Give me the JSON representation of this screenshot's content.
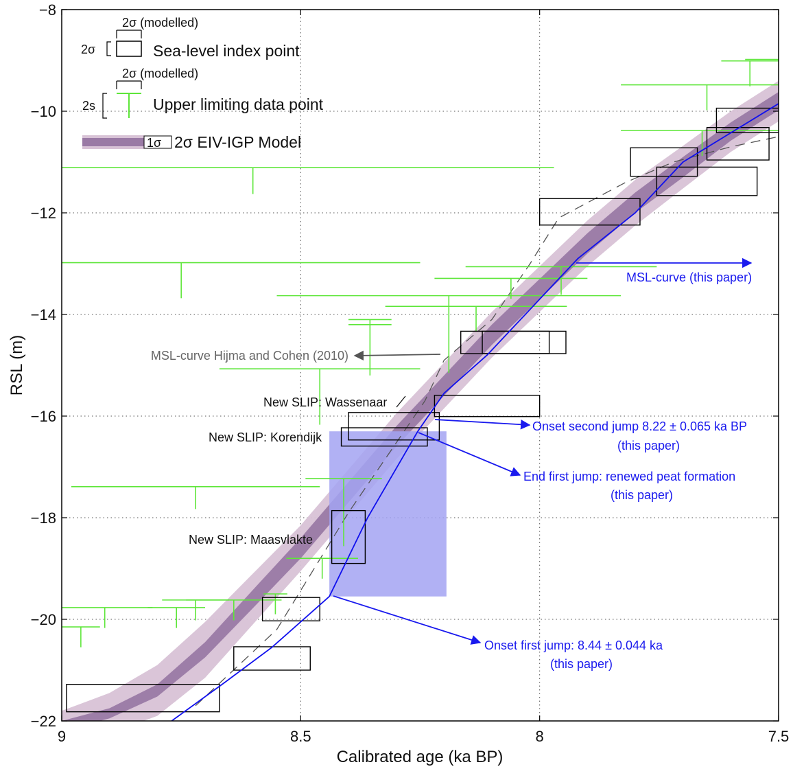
{
  "chart_data": {
    "type": "scatter",
    "xlabel": "Calibrated age (ka BP)",
    "ylabel": "RSL (m)",
    "xlim": [
      9.0,
      7.5
    ],
    "ylim": [
      -22,
      -8
    ],
    "x_reversed": true,
    "xticks": [
      9,
      8.5,
      8,
      7.5
    ],
    "xtick_labels": [
      "9",
      "8.5",
      "8",
      "7.5"
    ],
    "yticks": [
      -22,
      -20,
      -18,
      -16,
      -14,
      -12,
      -10,
      -8
    ],
    "ytick_labels": [
      "−22",
      "−20",
      "−18",
      "−16",
      "−14",
      "−12",
      "−10",
      "−8"
    ],
    "grid": true,
    "legend": {
      "placement": "top-left",
      "index_point_label": "Sea-level index point",
      "index_point_width_label": "2σ (modelled)",
      "index_point_height_label": "2σ",
      "limiting_point_label": "Upper limiting data point",
      "limiting_point_width_label": "2σ (modelled)",
      "limiting_point_height_label": "2s",
      "model_label": "2σ EIV-IGP Model",
      "model_inner_label": "1σ"
    },
    "colors": {
      "index_point": "#000000",
      "limiting_point": "#5ee63a",
      "model_band_2s": "#d8c2d6",
      "model_band_1s": "#9a7aa5",
      "model_line": "#1010ee",
      "hijma_line": "#555555",
      "highlight": "#a3a3f2",
      "annotation_blue": "#1a1aee",
      "annotation_grey": "#666666"
    },
    "index_points": [
      {
        "x": 8.83,
        "y": -21.55,
        "xerr": 0.16,
        "yerr": 0.27
      },
      {
        "x": 8.56,
        "y": -20.77,
        "xerr": 0.08,
        "yerr": 0.23
      },
      {
        "x": 8.52,
        "y": -19.8,
        "xerr": 0.06,
        "yerr": 0.23
      },
      {
        "x": 8.4,
        "y": -18.38,
        "xerr": 0.035,
        "yerr": 0.52
      },
      {
        "x": 8.325,
        "y": -16.41,
        "xerr": 0.09,
        "yerr": 0.18
      },
      {
        "x": 8.305,
        "y": -16.2,
        "xerr": 0.095,
        "yerr": 0.27
      },
      {
        "x": 8.11,
        "y": -15.8,
        "xerr": 0.11,
        "yerr": 0.21
      },
      {
        "x": 8.055,
        "y": -14.55,
        "xerr": 0.11,
        "yerr": 0.22
      },
      {
        "x": 8.05,
        "y": -14.55,
        "xerr": 0.07,
        "yerr": 0.22
      },
      {
        "x": 7.895,
        "y": -11.98,
        "xerr": 0.105,
        "yerr": 0.26
      },
      {
        "x": 7.65,
        "y": -11.38,
        "xerr": 0.105,
        "yerr": 0.28
      },
      {
        "x": 7.74,
        "y": -11.0,
        "xerr": 0.07,
        "yerr": 0.28
      },
      {
        "x": 7.585,
        "y": -10.64,
        "xerr": 0.065,
        "yerr": 0.32
      },
      {
        "x": 7.555,
        "y": -10.18,
        "xerr": 0.075,
        "yerr": 0.24
      }
    ],
    "limiting_points": [
      {
        "x": 8.96,
        "y": -20.15,
        "xerr": 0.04,
        "ydown": 0.4
      },
      {
        "x": 8.91,
        "y": -19.77,
        "xerr": 0.1,
        "ydown": 0.4
      },
      {
        "x": 8.76,
        "y": -19.77,
        "xerr": 0.06,
        "ydown": 0.4
      },
      {
        "x": 8.72,
        "y": -19.62,
        "xerr": 0.07,
        "ydown": 0.4
      },
      {
        "x": 8.64,
        "y": -19.62,
        "xerr": 0.1,
        "ydown": 0.4
      },
      {
        "x": 8.553,
        "y": -19.5,
        "xerr": 0.025,
        "ydown": 0.4
      },
      {
        "x": 8.455,
        "y": -18.8,
        "xerr": 0.075,
        "ydown": 0.4
      },
      {
        "x": 8.41,
        "y": -17.23,
        "xerr": 0.08,
        "ydown": 1.33
      },
      {
        "x": 8.72,
        "y": -17.39,
        "xerr": 0.26,
        "ydown": 0.44
      },
      {
        "x": 8.75,
        "y": -12.98,
        "xerr": 0.5,
        "ydown": 0.7
      },
      {
        "x": 8.6,
        "y": -11.11,
        "xerr": 0.63,
        "ydown": 0.52
      },
      {
        "x": 8.46,
        "y": -15.07,
        "xerr": 0.21,
        "ydown": 1.1
      },
      {
        "x": 8.355,
        "y": -14.1,
        "xerr": 0.045,
        "ydown": 1.1
      },
      {
        "x": 8.355,
        "y": -14.2,
        "xerr": 0.045,
        "ydown": 0.0
      },
      {
        "x": 8.19,
        "y": -13.63,
        "xerr": 0.36,
        "ydown": 1.52
      },
      {
        "x": 8.133,
        "y": -13.84,
        "xerr": 0.19,
        "ydown": 0.5
      },
      {
        "x": 8.06,
        "y": -13.29,
        "xerr": 0.16,
        "ydown": 0.4
      },
      {
        "x": 7.955,
        "y": -13.06,
        "xerr": 0.2,
        "ydown": 0.55
      },
      {
        "x": 7.66,
        "y": -10.38,
        "xerr": 0.17,
        "ydown": 0.5
      },
      {
        "x": 7.65,
        "y": -9.48,
        "xerr": 0.18,
        "ydown": 0.5
      },
      {
        "x": 7.56,
        "y": -9.01,
        "xerr": 0.06,
        "ydown": 0.5
      },
      {
        "x": 7.52,
        "y": -8.98,
        "xerr": 0.05,
        "ydown": 0.0
      }
    ],
    "model_curve": {
      "x": [
        9.0,
        8.9,
        8.8,
        8.7,
        8.6,
        8.5,
        8.4,
        8.3,
        8.2,
        8.1,
        8.0,
        7.9,
        7.8,
        7.7,
        7.6,
        7.5
      ],
      "y": [
        -22.1,
        -21.85,
        -21.4,
        -20.6,
        -19.6,
        -18.6,
        -17.5,
        -16.4,
        -15.4,
        -14.4,
        -13.5,
        -12.6,
        -11.8,
        -11.1,
        -10.4,
        -9.8
      ],
      "s1": [
        0.1,
        0.1,
        0.12,
        0.15,
        0.18,
        0.2,
        0.2,
        0.2,
        0.2,
        0.2,
        0.2,
        0.2,
        0.2,
        0.2,
        0.18,
        0.18
      ],
      "s2": [
        0.3,
        0.4,
        0.5,
        0.55,
        0.5,
        0.45,
        0.45,
        0.45,
        0.45,
        0.45,
        0.45,
        0.45,
        0.45,
        0.42,
        0.4,
        0.4
      ]
    },
    "msl_curve_this_paper": {
      "x": [
        8.77,
        8.66,
        8.56,
        8.44,
        8.36,
        8.255,
        8.2,
        8.11,
        8.0,
        7.92,
        7.8,
        7.7,
        7.5
      ],
      "y": [
        -22.0,
        -21.25,
        -20.55,
        -19.55,
        -18.0,
        -16.3,
        -15.55,
        -14.8,
        -13.7,
        -12.9,
        -12.0,
        -11.0,
        -9.85
      ]
    },
    "msl_curve_hijma_cohen": {
      "x": [
        8.72,
        8.55,
        8.4,
        8.32,
        8.24,
        8.2,
        8.1,
        8.02,
        7.96,
        7.9,
        7.82,
        7.72,
        7.6,
        7.5
      ],
      "y": [
        -21.7,
        -20.2,
        -17.9,
        -16.8,
        -15.7,
        -14.9,
        -14.1,
        -13.0,
        -12.1,
        -11.8,
        -11.4,
        -11.0,
        -10.7,
        -10.5
      ]
    },
    "highlight_region": {
      "x0": 8.44,
      "x1": 8.195,
      "y0": -16.3,
      "y1": -19.55
    },
    "annotations": {
      "msl_this_paper": "MSL-curve (this paper)",
      "msl_hijma": "MSL-curve Hijma and Cohen (2010)",
      "wassenaar": "New SLIP:  Wassenaar",
      "korendijk": "New SLIP:  Korendijk",
      "maasvlakte": "New SLIP: Maasvlakte",
      "onset_second_1": "Onset  second jump 8.22 ± 0.065 ka BP",
      "onset_second_2": "(this paper)",
      "end_first_1": "End first jump: renewed peat formation",
      "end_first_2": "(this paper)",
      "onset_first_1": "Onset first jump: 8.44 ± 0.044 ka",
      "onset_first_2": "(this paper)"
    }
  }
}
